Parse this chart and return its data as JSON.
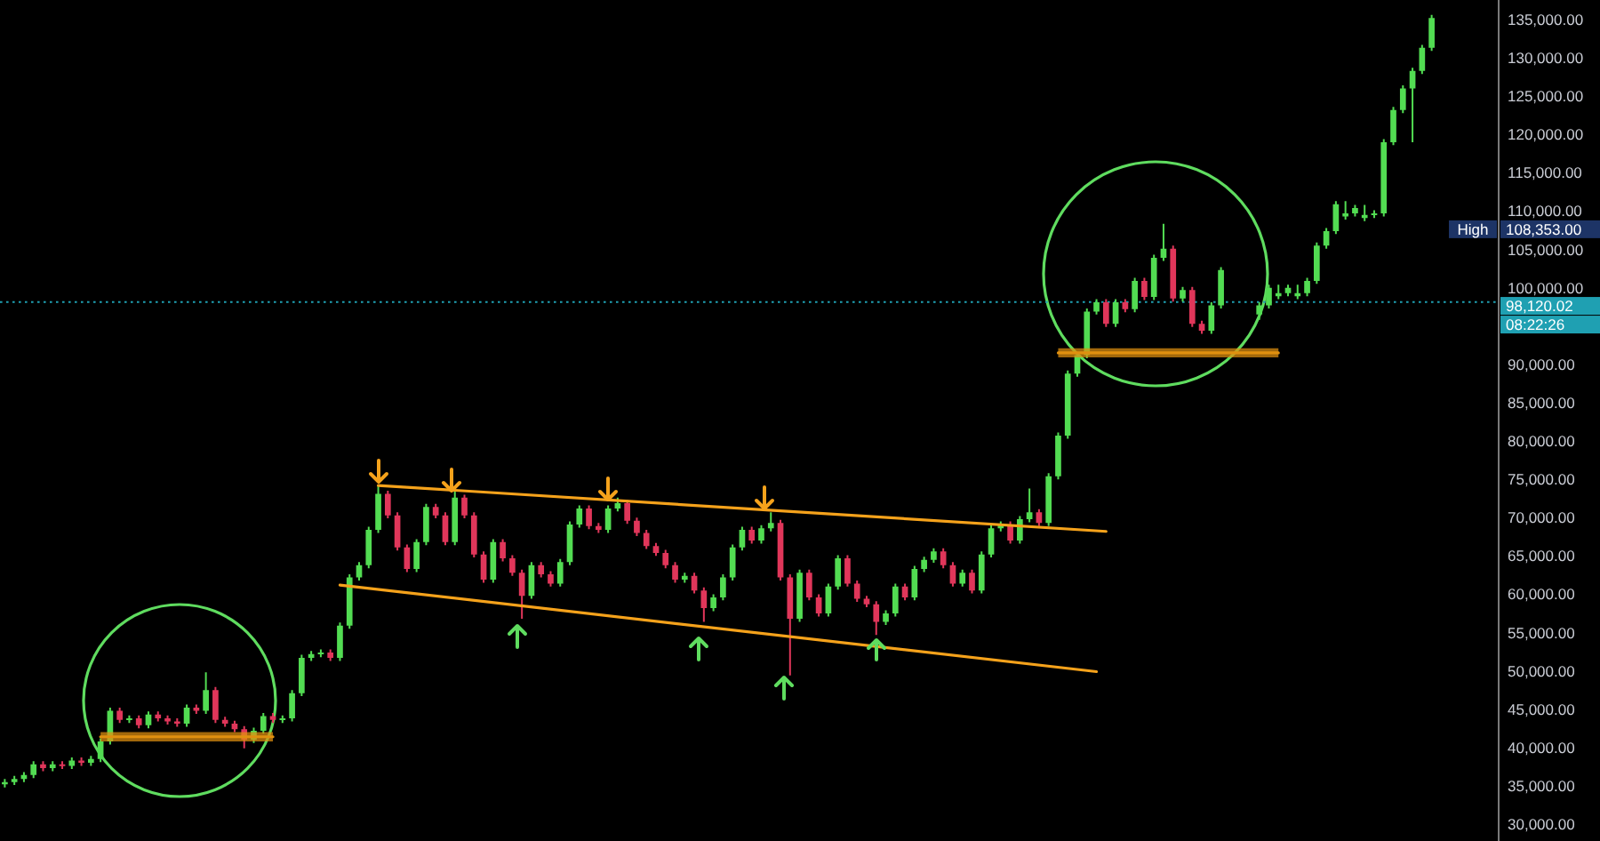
{
  "chart_data": {
    "type": "candlestick",
    "categories": [
      null,
      null,
      null,
      null,
      null,
      null,
      null,
      null,
      null,
      null,
      null,
      null,
      null,
      null,
      null,
      null,
      null,
      null,
      null,
      null,
      null,
      null,
      null,
      null,
      null,
      null,
      null,
      null,
      null,
      null,
      null,
      null,
      null,
      null,
      null,
      null,
      null,
      null,
      null,
      null,
      null,
      null,
      null,
      null,
      null,
      null,
      null,
      null,
      null,
      null,
      null,
      null,
      null,
      null,
      null,
      null,
      null,
      null,
      null,
      null,
      null,
      null,
      null,
      null,
      null,
      null,
      null,
      null,
      null,
      null,
      null,
      null,
      null,
      null,
      null,
      null,
      null,
      null,
      null,
      null,
      null,
      null,
      null,
      null,
      null,
      null,
      null,
      null,
      null,
      null,
      null,
      null,
      null,
      null,
      null,
      null,
      null,
      null,
      null,
      null,
      null,
      null,
      null,
      null,
      null,
      null,
      null,
      null,
      null,
      null,
      null,
      null,
      null,
      null,
      null,
      null,
      null,
      null,
      null,
      null,
      null,
      null,
      null,
      null,
      null,
      null,
      null,
      null,
      null,
      null,
      null,
      null,
      null,
      null,
      null,
      null,
      null,
      null,
      null,
      null,
      null,
      null,
      null,
      null,
      null,
      null,
      null,
      null,
      null,
      null
    ],
    "ohlc": [
      [
        35200,
        35900,
        34800,
        35500
      ],
      [
        35500,
        36300,
        35100,
        35900
      ],
      [
        35900,
        36800,
        35500,
        36400
      ],
      [
        36400,
        38200,
        36000,
        37800
      ],
      [
        37800,
        38200,
        36900,
        37300
      ],
      [
        37300,
        38200,
        36900,
        37800
      ],
      [
        37800,
        38200,
        37200,
        37600
      ],
      [
        37600,
        38700,
        37200,
        38300
      ],
      [
        38300,
        38700,
        37600,
        38000
      ],
      [
        38000,
        38900,
        37600,
        38500
      ],
      [
        38500,
        41200,
        38100,
        40800
      ],
      [
        40800,
        45200,
        40400,
        44800
      ],
      [
        44800,
        45200,
        43200,
        43600
      ],
      [
        43600,
        44200,
        43200,
        43800
      ],
      [
        43800,
        44200,
        42500,
        42900
      ],
      [
        42900,
        44700,
        42500,
        44300
      ],
      [
        44300,
        44700,
        43400,
        43800
      ],
      [
        43800,
        44200,
        43000,
        43400
      ],
      [
        43400,
        43800,
        42700,
        43100
      ],
      [
        43100,
        45600,
        42700,
        45200
      ],
      [
        45200,
        45600,
        44400,
        44800
      ],
      [
        44800,
        49800,
        44400,
        47500
      ],
      [
        47500,
        47900,
        43200,
        43600
      ],
      [
        43600,
        44000,
        42700,
        43100
      ],
      [
        43100,
        43500,
        42000,
        42400
      ],
      [
        42400,
        42800,
        39900,
        41000
      ],
      [
        41000,
        42600,
        40600,
        42200
      ],
      [
        42200,
        44500,
        41800,
        44100
      ],
      [
        44100,
        44500,
        43200,
        43600
      ],
      [
        43600,
        44200,
        43200,
        43800
      ],
      [
        43800,
        47500,
        43400,
        47100
      ],
      [
        47100,
        52100,
        46700,
        51700
      ],
      [
        51700,
        52600,
        51300,
        52200
      ],
      [
        52200,
        52800,
        51800,
        52400
      ],
      [
        52400,
        52800,
        51300,
        51700
      ],
      [
        51700,
        56300,
        51300,
        55900
      ],
      [
        55900,
        62600,
        55500,
        62200
      ],
      [
        62200,
        64200,
        61800,
        63800
      ],
      [
        63800,
        68800,
        63400,
        68400
      ],
      [
        68400,
        74200,
        68000,
        73100
      ],
      [
        73100,
        73500,
        69900,
        70300
      ],
      [
        70300,
        70700,
        65700,
        66100
      ],
      [
        66100,
        66500,
        62900,
        63300
      ],
      [
        63300,
        67200,
        62900,
        66800
      ],
      [
        66800,
        71800,
        66400,
        71400
      ],
      [
        71400,
        71800,
        69900,
        70300
      ],
      [
        70300,
        70700,
        66400,
        66800
      ],
      [
        66800,
        73500,
        66400,
        72600
      ],
      [
        72600,
        73000,
        69900,
        70300
      ],
      [
        70300,
        70700,
        64800,
        65200
      ],
      [
        65200,
        65600,
        61500,
        61900
      ],
      [
        61900,
        67200,
        61500,
        66800
      ],
      [
        66800,
        67200,
        64300,
        64700
      ],
      [
        64700,
        65100,
        62400,
        62800
      ],
      [
        62800,
        63200,
        56800,
        59800
      ],
      [
        59800,
        64200,
        59400,
        63800
      ],
      [
        63800,
        64200,
        62200,
        62600
      ],
      [
        62600,
        63000,
        61000,
        61400
      ],
      [
        61400,
        64600,
        61000,
        64200
      ],
      [
        64200,
        69500,
        63800,
        69100
      ],
      [
        69100,
        71600,
        68700,
        71200
      ],
      [
        71200,
        71600,
        68500,
        68900
      ],
      [
        68900,
        69300,
        68000,
        68400
      ],
      [
        68400,
        71600,
        68000,
        71200
      ],
      [
        71200,
        72600,
        70800,
        71900
      ],
      [
        71900,
        72300,
        69200,
        69600
      ],
      [
        69600,
        70000,
        67600,
        68000
      ],
      [
        68000,
        68400,
        65900,
        66300
      ],
      [
        66300,
        66700,
        65000,
        65400
      ],
      [
        65400,
        65800,
        63400,
        63800
      ],
      [
        63800,
        64200,
        61500,
        61900
      ],
      [
        61900,
        62800,
        61500,
        62400
      ],
      [
        62400,
        62800,
        60100,
        60500
      ],
      [
        60500,
        60900,
        56400,
        58200
      ],
      [
        58200,
        60000,
        57800,
        59600
      ],
      [
        59600,
        62600,
        59200,
        62200
      ],
      [
        62200,
        66500,
        61800,
        66100
      ],
      [
        66100,
        68800,
        65700,
        68400
      ],
      [
        68400,
        68800,
        66600,
        67000
      ],
      [
        67000,
        69000,
        66600,
        68600
      ],
      [
        68600,
        70700,
        68200,
        69300
      ],
      [
        69300,
        69700,
        61800,
        62200
      ],
      [
        62200,
        62600,
        49400,
        56800
      ],
      [
        56800,
        63200,
        56400,
        62800
      ],
      [
        62800,
        63200,
        59200,
        59600
      ],
      [
        59600,
        60000,
        57100,
        57500
      ],
      [
        57500,
        61400,
        57100,
        61000
      ],
      [
        61000,
        65100,
        60600,
        64700
      ],
      [
        64700,
        65100,
        61000,
        61400
      ],
      [
        61400,
        61800,
        59000,
        59400
      ],
      [
        59400,
        59800,
        58300,
        58700
      ],
      [
        58700,
        59100,
        54700,
        56400
      ],
      [
        56400,
        57900,
        56000,
        57500
      ],
      [
        57500,
        61400,
        57100,
        61000
      ],
      [
        61000,
        61400,
        59200,
        59600
      ],
      [
        59600,
        63700,
        59200,
        63300
      ],
      [
        63300,
        64900,
        62900,
        64500
      ],
      [
        64500,
        66000,
        64100,
        65600
      ],
      [
        65600,
        66000,
        63400,
        63800
      ],
      [
        63800,
        64200,
        61000,
        61400
      ],
      [
        61400,
        63200,
        61000,
        62800
      ],
      [
        62800,
        63200,
        60100,
        60500
      ],
      [
        60500,
        65600,
        60100,
        65200
      ],
      [
        65200,
        69000,
        64800,
        68600
      ],
      [
        68600,
        69500,
        68200,
        69100
      ],
      [
        69100,
        69500,
        66600,
        67000
      ],
      [
        67000,
        70200,
        66600,
        69800
      ],
      [
        69800,
        73800,
        69400,
        70700
      ],
      [
        70700,
        71100,
        68900,
        69300
      ],
      [
        69300,
        75800,
        68900,
        75400
      ],
      [
        75400,
        81100,
        75000,
        80700
      ],
      [
        80700,
        89200,
        80300,
        88800
      ],
      [
        88800,
        91600,
        88400,
        91200
      ],
      [
        91200,
        97300,
        90800,
        96900
      ],
      [
        96900,
        98500,
        96500,
        98100
      ],
      [
        98100,
        98500,
        94900,
        95300
      ],
      [
        95300,
        98500,
        94900,
        98100
      ],
      [
        98100,
        98500,
        96800,
        97200
      ],
      [
        97200,
        101300,
        96800,
        100900
      ],
      [
        100900,
        101300,
        98400,
        98800
      ],
      [
        98800,
        104300,
        98400,
        103900
      ],
      [
        103900,
        108353,
        103500,
        105100
      ],
      [
        105100,
        105500,
        98200,
        98600
      ],
      [
        98600,
        100100,
        98200,
        99700
      ],
      [
        99700,
        100100,
        94900,
        95300
      ],
      [
        95300,
        95700,
        94000,
        94400
      ],
      [
        94400,
        98100,
        94000,
        97700
      ],
      [
        97700,
        102700,
        97300,
        102300
      ],
      null,
      null,
      null,
      [
        96500,
        98100,
        95800,
        97700
      ],
      [
        97700,
        100400,
        97300,
        100000
      ],
      [
        98900,
        100400,
        98500,
        99300
      ],
      [
        99300,
        100400,
        98900,
        100000
      ],
      [
        98900,
        100400,
        98500,
        99300
      ],
      [
        99300,
        101300,
        98900,
        100900
      ],
      [
        100900,
        105900,
        100500,
        105500
      ],
      [
        105500,
        107800,
        105100,
        107400
      ],
      [
        107400,
        111300,
        107000,
        110900
      ],
      [
        109300,
        111300,
        108900,
        109700
      ],
      [
        109700,
        110800,
        109300,
        110400
      ],
      [
        109100,
        110800,
        108700,
        109500
      ],
      [
        109500,
        110100,
        109100,
        109700
      ],
      [
        109700,
        119400,
        109300,
        119000
      ],
      [
        119000,
        123600,
        118600,
        123200
      ],
      [
        123200,
        126400,
        122800,
        126000
      ],
      [
        126000,
        128700,
        119000,
        128300
      ],
      [
        128300,
        131700,
        127900,
        131300
      ],
      [
        131300,
        135600,
        130900,
        135200
      ]
    ],
    "colors": [
      "#52dc52",
      "#52dc52",
      "#52dc52",
      "#52dc52",
      "#e0365a",
      "#52dc52",
      "#e0365a",
      "#52dc52",
      "#e0365a",
      "#52dc52",
      "#52dc52",
      "#52dc52",
      "#e0365a",
      "#52dc52",
      "#e0365a",
      "#52dc52",
      "#e0365a",
      "#e0365a",
      "#e0365a",
      "#52dc52",
      "#e0365a",
      "#52dc52",
      "#e0365a",
      "#e0365a",
      "#e0365a",
      "#e0365a",
      "#52dc52",
      "#52dc52",
      "#e0365a",
      "#52dc52",
      "#52dc52",
      "#52dc52",
      "#52dc52",
      "#52dc52",
      "#e0365a",
      "#52dc52",
      "#52dc52",
      "#52dc52",
      "#52dc52",
      "#52dc52",
      "#e0365a",
      "#e0365a",
      "#e0365a",
      "#52dc52",
      "#52dc52",
      "#e0365a",
      "#e0365a",
      "#52dc52",
      "#e0365a",
      "#e0365a",
      "#e0365a",
      "#52dc52",
      "#e0365a",
      "#e0365a",
      "#e0365a",
      "#52dc52",
      "#e0365a",
      "#e0365a",
      "#52dc52",
      "#52dc52",
      "#52dc52",
      "#e0365a",
      "#e0365a",
      "#52dc52",
      "#52dc52",
      "#e0365a",
      "#e0365a",
      "#e0365a",
      "#e0365a",
      "#e0365a",
      "#e0365a",
      "#52dc52",
      "#e0365a",
      "#e0365a",
      "#52dc52",
      "#52dc52",
      "#52dc52",
      "#52dc52",
      "#e0365a",
      "#52dc52",
      "#52dc52",
      "#e0365a",
      "#e0365a",
      "#52dc52",
      "#e0365a",
      "#e0365a",
      "#52dc52",
      "#52dc52",
      "#e0365a",
      "#e0365a",
      "#e0365a",
      "#e0365a",
      "#52dc52",
      "#52dc52",
      "#e0365a",
      "#52dc52",
      "#52dc52",
      "#52dc52",
      "#e0365a",
      "#e0365a",
      "#52dc52",
      "#e0365a",
      "#52dc52",
      "#52dc52",
      "#52dc52",
      "#e0365a",
      "#52dc52",
      "#52dc52",
      "#e0365a",
      "#52dc52",
      "#52dc52",
      "#52dc52",
      "#52dc52",
      "#52dc52",
      "#52dc52",
      "#e0365a",
      "#52dc52",
      "#e0365a",
      "#52dc52",
      "#e0365a",
      "#52dc52",
      "#52dc52",
      "#e0365a",
      "#52dc52",
      "#e0365a",
      "#e0365a",
      "#52dc52",
      "#52dc52",
      null,
      null,
      null,
      "#52dc52",
      "#52dc52",
      "#52dc52",
      "#52dc52",
      "#52dc52",
      "#52dc52",
      "#52dc52",
      "#52dc52",
      "#52dc52",
      "#52dc52",
      "#52dc52",
      "#52dc52",
      "#52dc52",
      "#52dc52",
      "#52dc52",
      "#52dc52",
      "#52dc52",
      "#52dc52",
      "#52dc52"
    ],
    "series": [
      {
        "type": "line",
        "color": "#f5a21b",
        "values": [
          null,
          null,
          null,
          null,
          null,
          null,
          null,
          null,
          null,
          null,
          null,
          null,
          null,
          null,
          null,
          null,
          null,
          null,
          null,
          null,
          null,
          null,
          null,
          null,
          null,
          null,
          null,
          null,
          null,
          null,
          null,
          null,
          null,
          null,
          null,
          null,
          null,
          null,
          null,
          74200,
          null,
          null,
          null,
          null,
          null,
          null,
          null,
          null,
          null,
          null,
          null,
          null,
          null,
          null,
          null,
          null,
          null,
          null,
          null,
          null,
          null,
          null,
          null,
          null,
          null,
          null,
          null,
          null,
          null,
          null,
          null,
          null,
          null,
          null,
          null,
          null,
          null,
          null,
          null,
          null,
          null,
          null,
          null,
          null,
          null,
          null,
          null,
          null,
          null,
          null,
          null,
          null,
          null,
          null,
          null,
          null,
          null,
          null,
          null,
          null,
          null,
          null,
          null,
          null,
          null,
          null,
          null,
          null,
          null,
          null,
          null,
          null,
          null,
          null,
          null,
          68200,
          null,
          null,
          null,
          null,
          null,
          null,
          null,
          null,
          null,
          null,
          null,
          null,
          null,
          null,
          null,
          null,
          null,
          null,
          null,
          null,
          null,
          null,
          null,
          null,
          null,
          null,
          null,
          null,
          null,
          null,
          null,
          null,
          null,
          null
        ]
      },
      {
        "type": "line",
        "color": "#f5a21b",
        "values": [
          null,
          null,
          null,
          null,
          null,
          null,
          null,
          null,
          null,
          null,
          null,
          null,
          null,
          null,
          null,
          null,
          null,
          null,
          null,
          null,
          null,
          null,
          null,
          null,
          null,
          null,
          null,
          null,
          null,
          null,
          null,
          null,
          null,
          null,
          null,
          61200,
          null,
          null,
          null,
          null,
          null,
          null,
          null,
          null,
          null,
          null,
          null,
          null,
          null,
          null,
          null,
          null,
          null,
          null,
          null,
          null,
          null,
          null,
          null,
          null,
          null,
          null,
          null,
          null,
          null,
          null,
          null,
          null,
          null,
          null,
          null,
          null,
          null,
          null,
          null,
          null,
          null,
          null,
          null,
          null,
          null,
          null,
          null,
          null,
          null,
          null,
          null,
          null,
          null,
          null,
          null,
          null,
          null,
          null,
          null,
          null,
          null,
          null,
          null,
          null,
          null,
          null,
          null,
          null,
          null,
          null,
          null,
          null,
          null,
          null,
          null,
          null,
          null,
          null,
          49900,
          null,
          null,
          null,
          null,
          null,
          null,
          null,
          null,
          null,
          null,
          null,
          null,
          null,
          null,
          null,
          null,
          null,
          null,
          null,
          null,
          null,
          null,
          null,
          null,
          null,
          null,
          null,
          null,
          null,
          null,
          null,
          null,
          null,
          null,
          null
        ]
      },
      {
        "type": "line",
        "color": "#e0900f",
        "values": [
          null,
          null,
          null,
          null,
          null,
          null,
          null,
          null,
          null,
          null,
          41400,
          null,
          null,
          null,
          null,
          null,
          null,
          null,
          null,
          null,
          null,
          null,
          null,
          null,
          null,
          null,
          null,
          null,
          41400,
          null,
          null,
          null,
          null,
          null,
          null,
          null,
          null,
          null,
          null,
          null,
          null,
          null,
          null,
          null,
          null,
          null,
          null,
          null,
          null,
          null,
          null,
          null,
          null,
          null,
          null,
          null,
          null,
          null,
          null,
          null,
          null,
          null,
          null,
          null,
          null,
          null,
          null,
          null,
          null,
          null,
          null,
          null,
          null,
          null,
          null,
          null,
          null,
          null,
          null,
          null,
          null,
          null,
          null,
          null,
          null,
          null,
          null,
          null,
          null,
          null,
          null,
          null,
          null,
          null,
          null,
          null,
          null,
          null,
          null,
          null,
          null,
          null,
          null,
          null,
          null,
          null,
          null,
          null,
          null,
          null,
          null,
          null,
          null,
          null,
          null,
          null,
          null,
          null,
          null,
          null,
          null,
          null,
          null,
          null,
          null,
          null,
          null,
          null,
          null,
          null,
          null,
          null,
          null,
          null,
          null,
          null,
          null,
          null,
          null,
          null,
          null,
          null,
          null,
          null,
          null,
          null,
          null,
          null,
          null,
          null
        ],
        "lower": [
          null,
          null,
          null,
          null,
          null,
          null,
          null,
          null,
          null,
          null,
          40800,
          null,
          null,
          null,
          null,
          null,
          null,
          null,
          null,
          null,
          null,
          null,
          null,
          null,
          null,
          null,
          null,
          null,
          40800,
          null,
          null,
          null,
          null,
          null,
          null,
          null,
          null,
          null,
          null,
          null,
          null,
          null,
          null,
          null,
          null,
          null,
          null,
          null,
          null,
          null,
          null,
          null,
          null,
          null,
          null,
          null,
          null,
          null,
          null,
          null,
          null,
          null,
          null,
          null,
          null,
          null,
          null,
          null,
          null,
          null,
          null,
          null,
          null,
          null,
          null,
          null,
          null,
          null,
          null,
          null,
          null,
          null,
          null,
          null,
          null,
          null,
          null,
          null,
          null,
          null,
          null,
          null,
          null,
          null,
          null,
          null,
          null,
          null,
          null,
          null,
          null,
          null,
          null,
          null,
          null,
          null,
          null,
          null,
          null,
          null,
          null,
          null,
          null,
          null,
          null,
          null,
          null,
          null,
          null,
          null,
          null,
          null,
          null,
          null,
          null,
          null,
          null,
          null,
          null,
          null,
          null,
          null,
          null,
          null,
          null,
          null,
          null,
          null,
          null,
          null,
          null,
          null,
          null,
          null,
          null,
          null,
          null,
          null,
          null,
          null
        ],
        "upper": [
          null,
          null,
          null,
          null,
          null,
          null,
          null,
          null,
          null,
          null,
          42000,
          null,
          null,
          null,
          null,
          null,
          null,
          null,
          null,
          null,
          null,
          null,
          null,
          null,
          null,
          null,
          null,
          null,
          42000,
          null,
          null,
          null,
          null,
          null,
          null,
          null,
          null,
          null,
          null,
          null,
          null,
          null,
          null,
          null,
          null,
          null,
          null,
          null,
          null,
          null,
          null,
          null,
          null,
          null,
          null,
          null,
          null,
          null,
          null,
          null,
          null,
          null,
          null,
          null,
          null,
          null,
          null,
          null,
          null,
          null,
          null,
          null,
          null,
          null,
          null,
          null,
          null,
          null,
          null,
          null,
          null,
          null,
          null,
          null,
          null,
          null,
          null,
          null,
          null,
          null,
          null,
          null,
          null,
          null,
          null,
          null,
          null,
          null,
          null,
          null,
          null,
          null,
          null,
          null,
          null,
          null,
          null,
          null,
          null,
          null,
          null,
          null,
          null,
          null,
          null,
          null,
          null,
          null,
          null,
          null,
          null,
          null,
          null,
          null,
          null,
          null,
          null,
          null,
          null,
          null,
          null,
          null,
          null,
          null,
          null,
          null,
          null,
          null,
          null,
          null,
          null,
          null,
          null,
          null,
          null,
          null,
          null,
          null,
          null,
          null
        ]
      },
      {
        "type": "line",
        "color": "#e0900f",
        "values": [
          null,
          null,
          null,
          null,
          null,
          null,
          null,
          null,
          null,
          null,
          null,
          null,
          null,
          null,
          null,
          null,
          null,
          null,
          null,
          null,
          null,
          null,
          null,
          null,
          null,
          null,
          null,
          null,
          null,
          null,
          null,
          null,
          null,
          null,
          null,
          null,
          null,
          null,
          null,
          null,
          null,
          null,
          null,
          null,
          null,
          null,
          null,
          null,
          null,
          null,
          null,
          null,
          null,
          null,
          null,
          null,
          null,
          null,
          null,
          null,
          null,
          null,
          null,
          null,
          null,
          null,
          null,
          null,
          null,
          null,
          null,
          null,
          null,
          null,
          null,
          null,
          null,
          null,
          null,
          null,
          null,
          null,
          null,
          null,
          null,
          null,
          null,
          null,
          null,
          null,
          null,
          null,
          null,
          null,
          null,
          null,
          null,
          null,
          null,
          null,
          null,
          null,
          null,
          null,
          null,
          null,
          null,
          null,
          null,
          null,
          91500,
          null,
          null,
          null,
          null,
          null,
          null,
          null,
          null,
          null,
          null,
          null,
          null,
          null,
          null,
          null,
          null,
          null,
          null,
          null,
          null,
          null,
          null,
          91500,
          null,
          null,
          null,
          null,
          null,
          null,
          null,
          null,
          null,
          null,
          null,
          null,
          null,
          null,
          null,
          null
        ],
        "lower": [
          null,
          null,
          null,
          null,
          null,
          null,
          null,
          null,
          null,
          null,
          null,
          null,
          null,
          null,
          null,
          null,
          null,
          null,
          null,
          null,
          null,
          null,
          null,
          null,
          null,
          null,
          null,
          null,
          null,
          null,
          null,
          null,
          null,
          null,
          null,
          null,
          null,
          null,
          null,
          null,
          null,
          null,
          null,
          null,
          null,
          null,
          null,
          null,
          null,
          null,
          null,
          null,
          null,
          null,
          null,
          null,
          null,
          null,
          null,
          null,
          null,
          null,
          null,
          null,
          null,
          null,
          null,
          null,
          null,
          null,
          null,
          null,
          null,
          null,
          null,
          null,
          null,
          null,
          null,
          null,
          null,
          null,
          null,
          null,
          null,
          null,
          null,
          null,
          null,
          null,
          null,
          null,
          null,
          null,
          null,
          null,
          null,
          null,
          null,
          null,
          null,
          null,
          null,
          null,
          null,
          null,
          null,
          null,
          null,
          null,
          90900,
          null,
          null,
          null,
          null,
          null,
          null,
          null,
          null,
          null,
          null,
          null,
          null,
          null,
          null,
          null,
          null,
          null,
          null,
          null,
          null,
          null,
          null,
          90900,
          null,
          null,
          null,
          null,
          null,
          null,
          null,
          null,
          null,
          null,
          null,
          null,
          null,
          null,
          null,
          null
        ],
        "upper": [
          null,
          null,
          null,
          null,
          null,
          null,
          null,
          null,
          null,
          null,
          null,
          null,
          null,
          null,
          null,
          null,
          null,
          null,
          null,
          null,
          null,
          null,
          null,
          null,
          null,
          null,
          null,
          null,
          null,
          null,
          null,
          null,
          null,
          null,
          null,
          null,
          null,
          null,
          null,
          null,
          null,
          null,
          null,
          null,
          null,
          null,
          null,
          null,
          null,
          null,
          null,
          null,
          null,
          null,
          null,
          null,
          null,
          null,
          null,
          null,
          null,
          null,
          null,
          null,
          null,
          null,
          null,
          null,
          null,
          null,
          null,
          null,
          null,
          null,
          null,
          null,
          null,
          null,
          null,
          null,
          null,
          null,
          null,
          null,
          null,
          null,
          null,
          null,
          null,
          null,
          null,
          null,
          null,
          null,
          null,
          null,
          null,
          null,
          null,
          null,
          null,
          null,
          null,
          null,
          null,
          null,
          null,
          null,
          null,
          null,
          92100,
          null,
          null,
          null,
          null,
          null,
          null,
          null,
          null,
          null,
          null,
          null,
          null,
          null,
          null,
          null,
          null,
          null,
          null,
          null,
          null,
          null,
          null,
          92100,
          null,
          null,
          null,
          null,
          null,
          null,
          null,
          null,
          null,
          null,
          null,
          null,
          null,
          null,
          null,
          null
        ]
      }
    ],
    "ylim": [
      27800,
      137550
    ],
    "yticks": [
      {
        "value": 30000,
        "label": "30,000.00"
      },
      {
        "value": 35000,
        "label": "35,000.00"
      },
      {
        "value": 40000,
        "label": "40,000.00"
      },
      {
        "value": 45000,
        "label": "45,000.00"
      },
      {
        "value": 50000,
        "label": "50,000.00"
      },
      {
        "value": 55000,
        "label": "55,000.00"
      },
      {
        "value": 60000,
        "label": "60,000.00"
      },
      {
        "value": 65000,
        "label": "65,000.00"
      },
      {
        "value": 70000,
        "label": "70,000.00"
      },
      {
        "value": 75000,
        "label": "75,000.00"
      },
      {
        "value": 80000,
        "label": "80,000.00"
      },
      {
        "value": 85000,
        "label": "85,000.00"
      },
      {
        "value": 90000,
        "label": "90,000.00"
      },
      {
        "value": 100000,
        "label": "100,000.00"
      },
      {
        "value": 105000,
        "label": "105,000.00"
      },
      {
        "value": 110000,
        "label": "110,000.00"
      },
      {
        "value": 115000,
        "label": "115,000.00"
      },
      {
        "value": 120000,
        "label": "120,000.00"
      },
      {
        "value": 125000,
        "label": "125,000.00"
      },
      {
        "value": 130000,
        "label": "130,000.00"
      },
      {
        "value": 135000,
        "label": "135,000.00"
      }
    ],
    "tick_labels": "y",
    "ref_lines": [
      {
        "axis": "y",
        "value": 98120.02,
        "label": "98,120.02",
        "color": "#1fa0b2",
        "line_style": "dotted"
      }
    ],
    "annotations": [
      "High",
      "108,353.00",
      "08:22:26"
    ]
  }
}
